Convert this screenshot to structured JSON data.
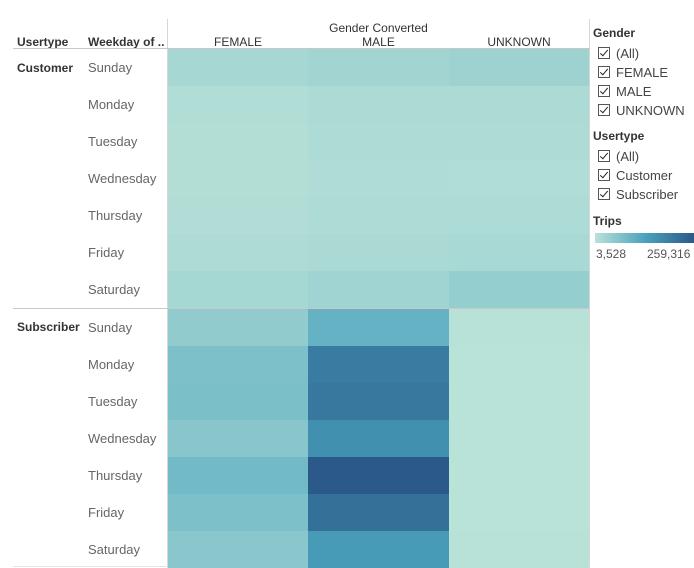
{
  "header": {
    "usertype_label": "Usertype",
    "weekday_label": "Weekday of ..",
    "column_group_label": "Gender Converted"
  },
  "chart_data": {
    "type": "heatmap",
    "title": "",
    "columns": [
      "FEMALE",
      "MALE",
      "UNKNOWN"
    ],
    "row_groups": [
      {
        "name": "Customer",
        "rows": [
          {
            "day": "Sunday",
            "values": [
              25000,
              30000,
              35000
            ]
          },
          {
            "day": "Monday",
            "values": [
              14000,
              18000,
              18000
            ]
          },
          {
            "day": "Tuesday",
            "values": [
              12000,
              17000,
              16000
            ]
          },
          {
            "day": "Wednesday",
            "values": [
              12000,
              15000,
              14000
            ]
          },
          {
            "day": "Thursday",
            "values": [
              13000,
              17000,
              17000
            ]
          },
          {
            "day": "Friday",
            "values": [
              16000,
              20000,
              22000
            ]
          },
          {
            "day": "Saturday",
            "values": [
              26000,
              32000,
              45000
            ]
          }
        ]
      },
      {
        "name": "Subscriber",
        "rows": [
          {
            "day": "Sunday",
            "values": [
              50000,
              100000,
              5000
            ]
          },
          {
            "day": "Monday",
            "values": [
              72000,
              200000,
              3528
            ]
          },
          {
            "day": "Tuesday",
            "values": [
              75000,
              205000,
              3600
            ]
          },
          {
            "day": "Wednesday",
            "values": [
              60000,
              165000,
              3800
            ]
          },
          {
            "day": "Thursday",
            "values": [
              85000,
              259316,
              3700
            ]
          },
          {
            "day": "Friday",
            "values": [
              72000,
              220000,
              4000
            ]
          },
          {
            "day": "Saturday",
            "values": [
              58000,
              145000,
              4500
            ]
          }
        ]
      }
    ],
    "color_scale": {
      "min": 3528,
      "max": 259316,
      "min_label": "3,528",
      "max_label": "259,316",
      "color_low": "#b9e2d8",
      "color_mid": "#4aa3bd",
      "color_high": "#2b5989"
    }
  },
  "legend": {
    "gender": {
      "title": "Gender",
      "items": [
        "(All)",
        "FEMALE",
        "MALE",
        "UNKNOWN"
      ]
    },
    "usertype": {
      "title": "Usertype",
      "items": [
        "(All)",
        "Customer",
        "Subscriber"
      ]
    },
    "trips": {
      "title": "Trips"
    }
  }
}
